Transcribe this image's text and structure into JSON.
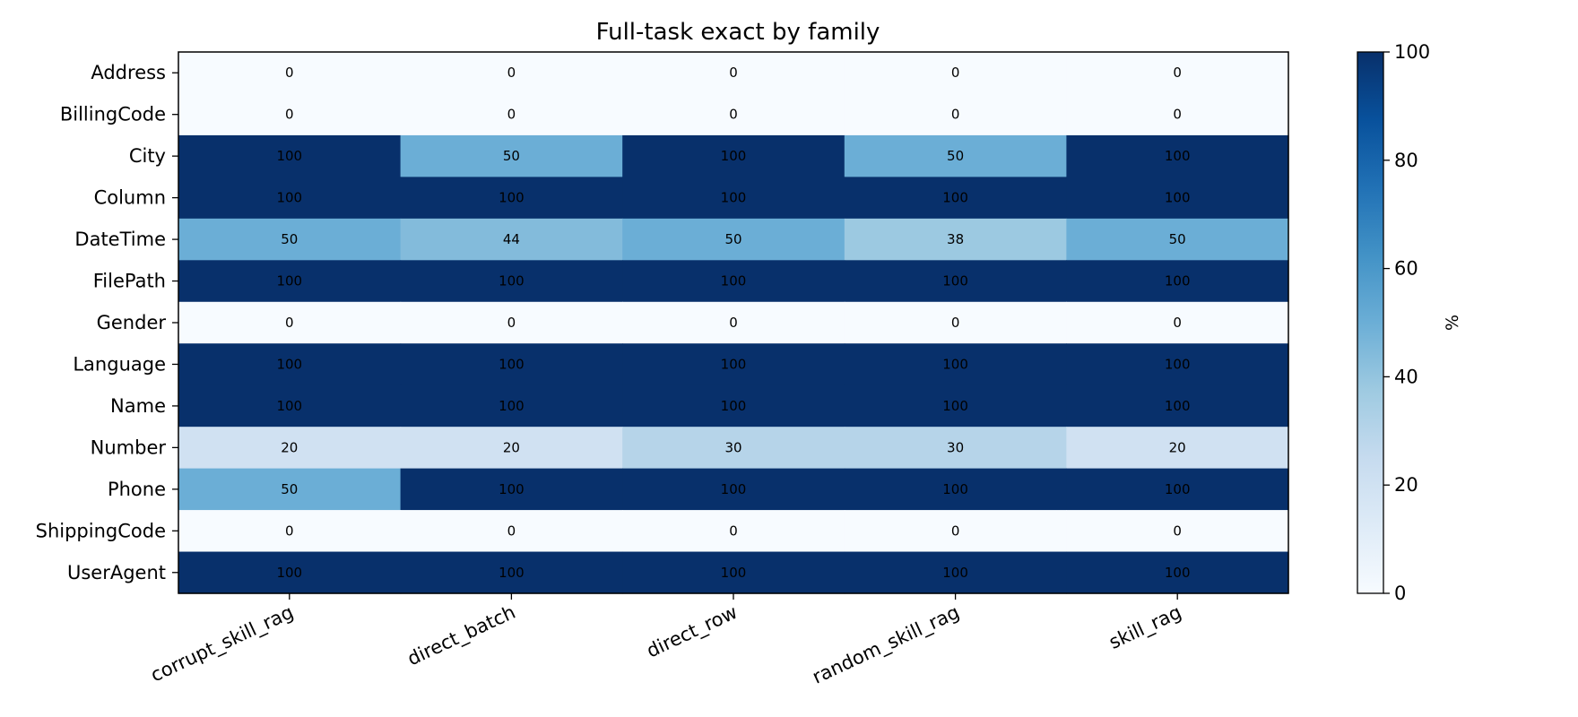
{
  "chart_data": {
    "type": "heatmap",
    "title": "Full-task exact by family",
    "x_categories": [
      "corrupt_skill_rag",
      "direct_batch",
      "direct_row",
      "random_skill_rag",
      "skill_rag"
    ],
    "y_categories": [
      "Address",
      "BillingCode",
      "City",
      "Column",
      "DateTime",
      "FilePath",
      "Gender",
      "Language",
      "Name",
      "Number",
      "Phone",
      "ShippingCode",
      "UserAgent"
    ],
    "values": [
      [
        0,
        0,
        0,
        0,
        0
      ],
      [
        0,
        0,
        0,
        0,
        0
      ],
      [
        100,
        50,
        100,
        50,
        100
      ],
      [
        100,
        100,
        100,
        100,
        100
      ],
      [
        50,
        44,
        50,
        38,
        50
      ],
      [
        100,
        100,
        100,
        100,
        100
      ],
      [
        0,
        0,
        0,
        0,
        0
      ],
      [
        100,
        100,
        100,
        100,
        100
      ],
      [
        100,
        100,
        100,
        100,
        100
      ],
      [
        20,
        20,
        30,
        30,
        20
      ],
      [
        50,
        100,
        100,
        100,
        100
      ],
      [
        0,
        0,
        0,
        0,
        0
      ],
      [
        100,
        100,
        100,
        100,
        100
      ]
    ],
    "colorbar": {
      "label": "%",
      "ticks": [
        "0",
        "20",
        "40",
        "60",
        "80",
        "100"
      ],
      "range": [
        0,
        100
      ],
      "colormap": "Blues"
    }
  }
}
